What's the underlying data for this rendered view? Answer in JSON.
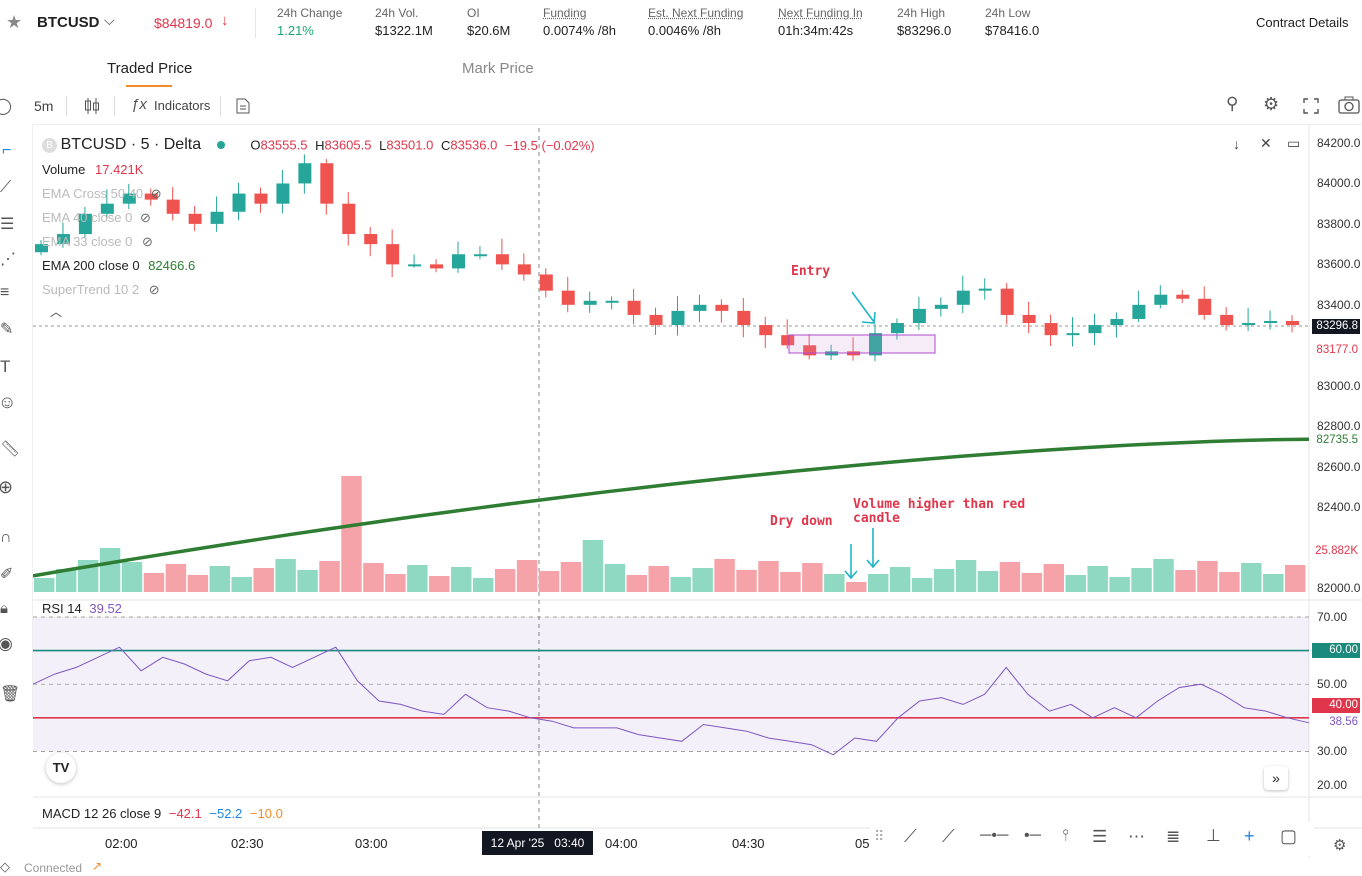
{
  "header": {
    "symbol": "BTCUSD",
    "last_price": "$84819.0",
    "stats": [
      {
        "label": "24h Change",
        "value": "1.21%"
      },
      {
        "label": "24h Vol.",
        "value": "$1322.1M"
      },
      {
        "label": "OI",
        "value": "$20.6M"
      },
      {
        "label": "Funding",
        "value": "0.0074% /8h"
      },
      {
        "label": "Est. Next Funding",
        "value": "0.0046% /8h"
      },
      {
        "label": "Next Funding In",
        "value": "01h:34m:42s"
      },
      {
        "label": "24h High",
        "value": "$83296.0"
      },
      {
        "label": "24h Low",
        "value": "$78416.0"
      }
    ],
    "contract_details": "Contract Details"
  },
  "tabs": [
    "Traded Price",
    "Mark Price"
  ],
  "toolbar": {
    "interval": "5m",
    "indicators": "Indicators"
  },
  "legend": {
    "title": "BTCUSD · 5 · Delta",
    "o": "83555.5",
    "h": "83605.5",
    "l": "83501.0",
    "c": "83536.0",
    "chg": "−19.5 (−0.02%)",
    "volume_label": "Volume",
    "volume_value": "17.421K",
    "ema_cross": "EMA Cross 50 40",
    "ema40": "EMA 40 close 0",
    "ema33": "EMA 33 close 0",
    "ema200_label": "EMA 200 close 0",
    "ema200_value": "82466.6",
    "supertrend": "SuperTrend 10 2",
    "rsi_label": "RSI 14",
    "rsi_value": "39.52",
    "macd_label": "MACD 12 26 close 9",
    "macd_v1": "−42.1",
    "macd_v2": "−52.2",
    "macd_v3": "−10.0"
  },
  "annotations": {
    "entry": "Entry",
    "dry_down": "Dry down",
    "volume_note_1": "Volume higher than red",
    "volume_note_2": "candle"
  },
  "price_axis": [
    "84200.0",
    "84000.0",
    "83800.0",
    "83600.0",
    "83400.0",
    "83000.0",
    "82800.0",
    "82600.0",
    "82400.0",
    "82000.0"
  ],
  "price_tags": {
    "current": "83296.8",
    "red": "83177.0",
    "ema200": "82735.5",
    "volume": "25.882K"
  },
  "rsi_axis": [
    "70.00",
    "50.00",
    "30.00",
    "20.00"
  ],
  "rsi_tags": {
    "upper": "60.00",
    "lower": "40.00",
    "current": "38.56"
  },
  "time_axis": [
    "02:00",
    "02:30",
    "03:00",
    "04:00",
    "04:30",
    "05"
  ],
  "crosshair_time": "12 Apr '25   03:40",
  "status": "Connected",
  "chart_data": {
    "type": "candlestick",
    "interval": "5m",
    "candles_close_approx": [
      83700,
      83750,
      83850,
      83900,
      83950,
      83920,
      83850,
      83800,
      83860,
      83950,
      83900,
      84000,
      84100,
      83900,
      83750,
      83700,
      83600,
      83600,
      83580,
      83650,
      83650,
      83600,
      83550,
      83470,
      83400,
      83420,
      83420,
      83350,
      83300,
      83370,
      83400,
      83370,
      83300,
      83250,
      83200,
      83150,
      83170,
      83150,
      83260,
      83310,
      83380,
      83400,
      83470,
      83480,
      83350,
      83310,
      83250,
      83260,
      83300,
      83330,
      83400,
      83450,
      83430,
      83350,
      83300,
      83310,
      83320,
      83300
    ],
    "ema200_range": [
      82060,
      82735.5
    ],
    "rsi_levels": {
      "upper": 60,
      "lower": 40
    },
    "rsi_axis_range": [
      20,
      70
    ]
  },
  "colors": {
    "up": "#26a69a",
    "down": "#ef5350",
    "ema200": "#2e7d32",
    "rsi": "#7e57c2",
    "accent": "#e0364c"
  }
}
